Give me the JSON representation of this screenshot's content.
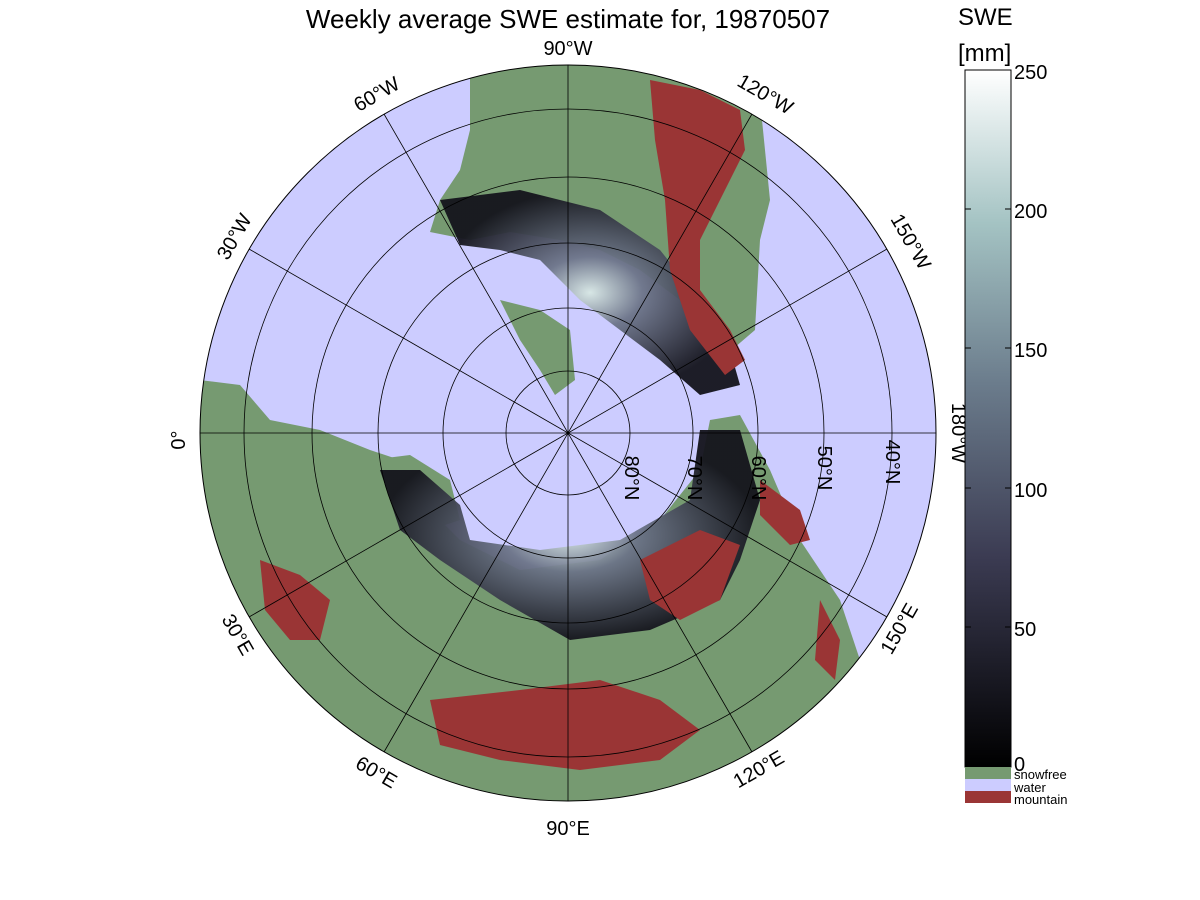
{
  "title": "Weekly average SWE estimate for, 19870507",
  "colorbar": {
    "label_line1": "SWE",
    "label_line2": "[mm]",
    "ticks": [
      "250",
      "200",
      "150",
      "100",
      "50",
      "0"
    ],
    "categories": [
      {
        "label": "snowfree",
        "color": "#769a71"
      },
      {
        "label": "water",
        "color": "#ccccff"
      },
      {
        "label": "mountain",
        "color": "#9a3535"
      }
    ]
  },
  "map": {
    "projection": "north-polar stereographic",
    "colors": {
      "water": "#ccccff",
      "land": "#769a71",
      "mountain": "#9a3535"
    },
    "longitude_labels": [
      "90°W",
      "60°W",
      "30°W",
      "0°",
      "30°E",
      "60°E",
      "90°E",
      "120°E",
      "150°E",
      "180°W",
      "150°W",
      "120°W"
    ],
    "latitude_labels": [
      "80°N",
      "70°N",
      "60°N",
      "50°N",
      "40°N"
    ]
  }
}
